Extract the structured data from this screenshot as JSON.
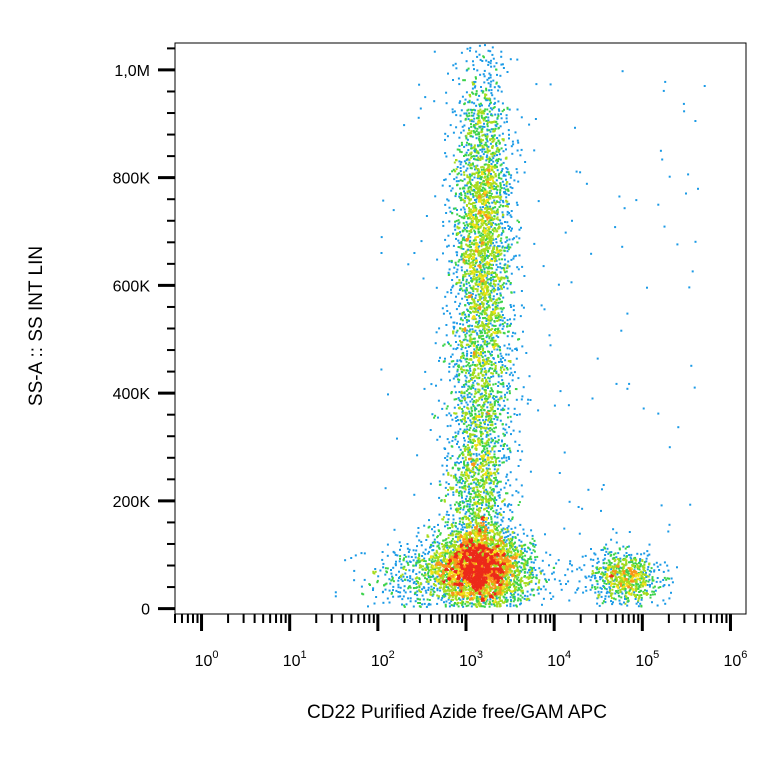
{
  "chart_data": {
    "type": "scatter",
    "subtype": "flow-cytometry density dot plot",
    "xlabel": "CD22 Purified Azide free/GAM APC",
    "ylabel": "SS-A :: SS INT LIN",
    "x_scale": "log",
    "y_scale": "linear",
    "xlim": [
      0.5,
      1500000
    ],
    "ylim": [
      -10000,
      1050000
    ],
    "x_ticks": [
      {
        "value": 1,
        "base": "10",
        "exp": "0"
      },
      {
        "value": 10,
        "base": "10",
        "exp": "1"
      },
      {
        "value": 100,
        "base": "10",
        "exp": "2"
      },
      {
        "value": 1000,
        "base": "10",
        "exp": "3"
      },
      {
        "value": 10000,
        "base": "10",
        "exp": "4"
      },
      {
        "value": 100000,
        "base": "10",
        "exp": "5"
      },
      {
        "value": 1000000,
        "base": "10",
        "exp": "6"
      }
    ],
    "y_ticks": [
      {
        "value": 0,
        "label": "0"
      },
      {
        "value": 200000,
        "label": "200K"
      },
      {
        "value": 400000,
        "label": "400K"
      },
      {
        "value": 600000,
        "label": "600K"
      },
      {
        "value": 800000,
        "label": "800K"
      },
      {
        "value": 1000000,
        "label": "1,0M"
      }
    ],
    "colormap": [
      "#0a10c8",
      "#1c4be6",
      "#1a9ae6",
      "#18c8c0",
      "#3ad24a",
      "#a6dc1e",
      "#f4e218",
      "#f8961a",
      "#ec2a1a"
    ],
    "populations": [
      {
        "x_center": 1300,
        "y_center": 80000,
        "x_spread_decades": 0.26,
        "y_spread": 35000,
        "weight": 34
      },
      {
        "x_center": 1300,
        "y_center": 240000,
        "x_spread_decades": 0.18,
        "y_spread": 110000,
        "weight": 16
      },
      {
        "x_center": 1500,
        "y_center": 720000,
        "x_spread_decades": 0.16,
        "y_spread": 150000,
        "weight": 28
      },
      {
        "x_center": 1400,
        "y_center": 480000,
        "x_spread_decades": 0.2,
        "y_spread": 110000,
        "weight": 7
      },
      {
        "x_center": 60000,
        "y_center": 60000,
        "x_spread_decades": 0.2,
        "y_spread": 25000,
        "weight": 8
      },
      {
        "x_center": 300,
        "y_center": 60000,
        "x_spread_decades": 0.35,
        "y_spread": 30000,
        "weight": 4
      },
      {
        "x_center": 3000,
        "y_center": 60000,
        "x_spread_decades": 0.3,
        "y_spread": 30000,
        "weight": 3
      }
    ],
    "grid": false,
    "legend": "none"
  }
}
